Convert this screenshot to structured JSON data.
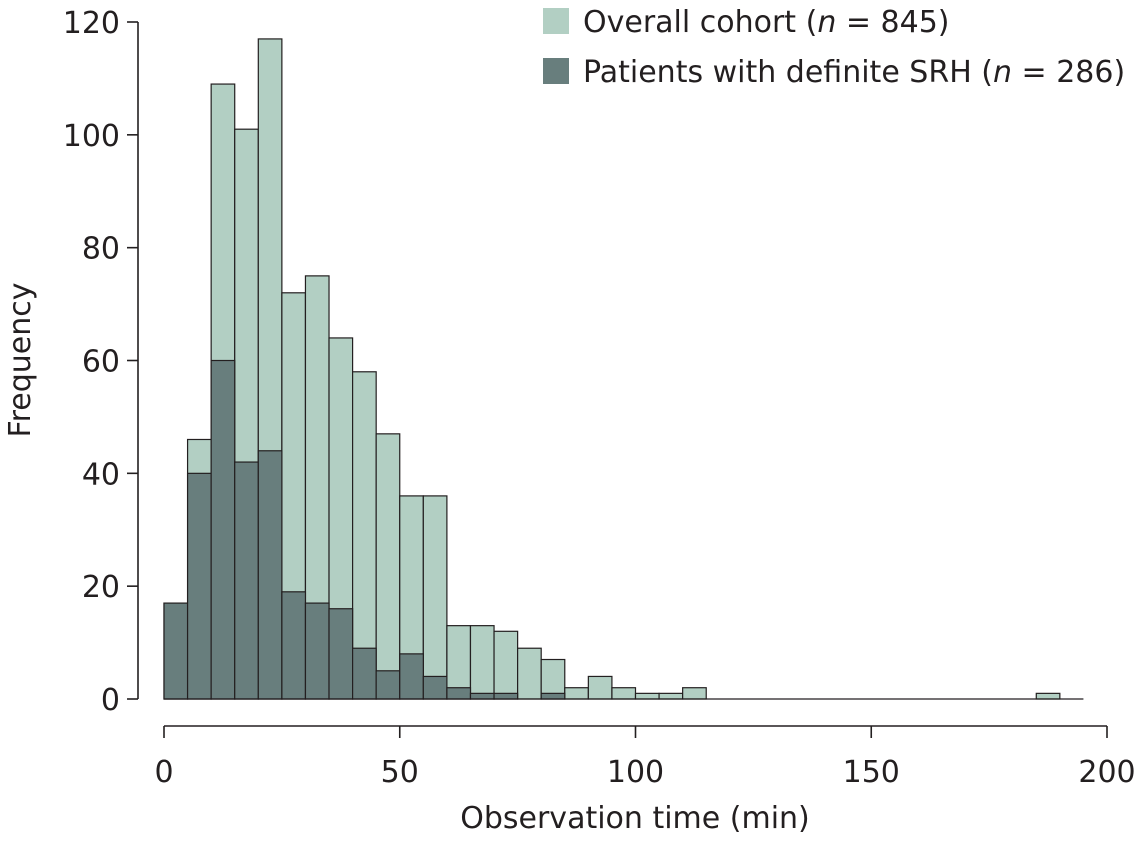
{
  "chart_data": {
    "type": "bar",
    "subtype": "overlaid-histogram",
    "title": "",
    "xlabel": "Observation time (min)",
    "ylabel": "Frequency",
    "xlim": [
      0,
      200
    ],
    "ylim": [
      0,
      120
    ],
    "xticks": [
      "0",
      "50",
      "100",
      "150",
      "200"
    ],
    "yticks": [
      "0",
      "20",
      "40",
      "60",
      "80",
      "100",
      "120"
    ],
    "bin_width": 5,
    "bin_starts": [
      0,
      5,
      10,
      15,
      20,
      25,
      30,
      35,
      40,
      45,
      50,
      55,
      60,
      65,
      70,
      75,
      80,
      85,
      90,
      95,
      100,
      105,
      110,
      115,
      120,
      125,
      130,
      135,
      140,
      145,
      150,
      155,
      160,
      165,
      170,
      175,
      180,
      185,
      190
    ],
    "series": [
      {
        "name": "Overall cohort (n = 845)",
        "legend_prefix": "Overall cohort (",
        "legend_n": "n",
        "legend_suffix": " = 845)",
        "color": "#b2cfc3",
        "values": [
          17,
          46,
          109,
          101,
          117,
          72,
          75,
          64,
          58,
          47,
          36,
          36,
          13,
          13,
          12,
          9,
          7,
          2,
          4,
          2,
          1,
          1,
          2,
          0,
          0,
          0,
          0,
          0,
          0,
          0,
          0,
          0,
          0,
          0,
          0,
          0,
          0,
          1,
          0
        ]
      },
      {
        "name": "Patients with definite SRH (n = 286)",
        "legend_prefix": "Patients with definite SRH (",
        "legend_n": "n",
        "legend_suffix": " = 286)",
        "color": "#687e7d",
        "values": [
          17,
          40,
          60,
          42,
          44,
          19,
          17,
          16,
          9,
          5,
          8,
          4,
          2,
          1,
          1,
          0,
          1,
          0,
          0,
          0,
          0,
          0,
          0,
          0,
          0,
          0,
          0,
          0,
          0,
          0,
          0,
          0,
          0,
          0,
          0,
          0,
          0,
          0,
          0
        ]
      }
    ],
    "legend_position": "top-right",
    "grid": false
  },
  "colors": {
    "axis": "#231f20",
    "bar_outline": "#231f20"
  }
}
